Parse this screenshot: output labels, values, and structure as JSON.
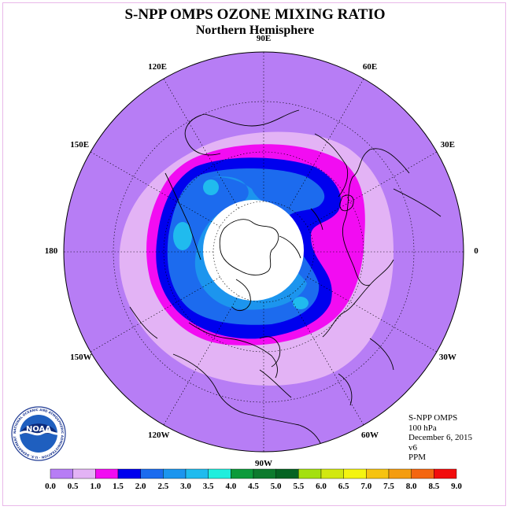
{
  "title": "S-NPP OMPS OZONE MIXING RATIO",
  "subtitle": "Northern Hemisphere",
  "longitude_labels": [
    {
      "text": "90E",
      "lon": 90
    },
    {
      "text": "60E",
      "lon": 60
    },
    {
      "text": "30E",
      "lon": 30
    },
    {
      "text": "0",
      "lon": 0
    },
    {
      "text": "30W",
      "lon": -30
    },
    {
      "text": "60W",
      "lon": -60
    },
    {
      "text": "90W",
      "lon": -90
    },
    {
      "text": "120W",
      "lon": -120
    },
    {
      "text": "150W",
      "lon": -150
    },
    {
      "text": "180",
      "lon": 180
    },
    {
      "text": "150E",
      "lon": 150
    },
    {
      "text": "120E",
      "lon": 120
    }
  ],
  "info": {
    "instrument": "S-NPP OMPS",
    "level": "100 hPa",
    "date": "December 6, 2015",
    "version": "v6",
    "units": "PPM"
  },
  "logo": {
    "text": "NOAA",
    "ring_text": "NATIONAL OCEANIC AND ATMOSPHERIC ADMINISTRATION · U.S. DEPARTMENT OF COMMERCE"
  },
  "colorbar": {
    "ticks": [
      "0.0",
      "0.5",
      "1.0",
      "1.5",
      "2.0",
      "2.5",
      "3.0",
      "3.5",
      "4.0",
      "4.5",
      "5.0",
      "5.5",
      "6.0",
      "6.5",
      "7.0",
      "7.5",
      "8.0",
      "8.5",
      "9.0"
    ],
    "colors": [
      "#b77df5",
      "#e3b3f5",
      "#f20cf2",
      "#0000ee",
      "#1c6bee",
      "#1c95ee",
      "#20bbee",
      "#20eedd",
      "#0d9a3b",
      "#0d7a2d",
      "#056322",
      "#a4e010",
      "#d2e810",
      "#f4f410",
      "#f6c310",
      "#f49c10",
      "#f46610",
      "#f20c0c",
      "#7a4a2a"
    ]
  },
  "map_colors": {
    "outer": "#b77df5",
    "band_0_5": "#e3b3f5",
    "band_1_0": "#f20cf2",
    "band_1_5": "#0000ee",
    "band_2_0": "#1c6bee",
    "band_2_5": "#1c95ee",
    "band_3_0": "#20bbee",
    "pole_gap": "#ffffff"
  }
}
